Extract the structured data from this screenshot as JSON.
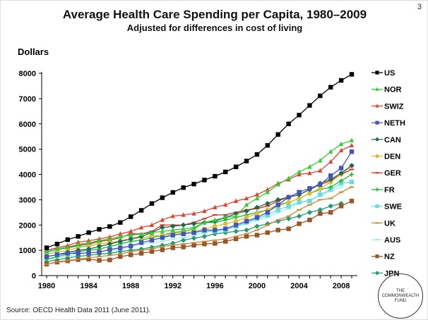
{
  "page_number": "3",
  "source": "Source: OECD Health Data 2011 (June 2011).",
  "logo_text": "THE COMMONWEALTH FUND",
  "chart_data": {
    "type": "line",
    "title": "Average Health Care Spending per Capita, 1980–2009",
    "subtitle": "Adjusted for differences in cost of living",
    "ylabel": "Dollars",
    "xlabel": "",
    "ylim": [
      0,
      8000
    ],
    "yticks": [
      0,
      1000,
      2000,
      3000,
      4000,
      5000,
      6000,
      7000,
      8000
    ],
    "xlim": [
      1980,
      2009
    ],
    "xticks": [
      1980,
      1984,
      1988,
      1992,
      1996,
      2000,
      2004,
      2008
    ],
    "grid": false,
    "legend": "right",
    "x": [
      1980,
      1981,
      1982,
      1983,
      1984,
      1985,
      1986,
      1987,
      1988,
      1989,
      1990,
      1991,
      1992,
      1993,
      1994,
      1995,
      1996,
      1997,
      1998,
      1999,
      2000,
      2001,
      2002,
      2003,
      2004,
      2005,
      2006,
      2007,
      2008,
      2009
    ],
    "series": [
      {
        "name": "US",
        "color": "#000000",
        "marker": "square",
        "values": [
          1100,
          1250,
          1420,
          1550,
          1700,
          1830,
          1940,
          2100,
          2330,
          2580,
          2850,
          3080,
          3290,
          3480,
          3620,
          3780,
          3930,
          4100,
          4300,
          4530,
          4790,
          5150,
          5580,
          6000,
          6350,
          6730,
          7110,
          7450,
          7720,
          7960
        ]
      },
      {
        "name": "NOR",
        "color": "#33cc33",
        "marker": "triangle",
        "values": [
          950,
          1050,
          1130,
          1230,
          1300,
          1380,
          1460,
          1540,
          1600,
          1640,
          1700,
          1750,
          1800,
          1850,
          1900,
          2100,
          2200,
          2300,
          2350,
          2800,
          3050,
          3300,
          3600,
          3850,
          4100,
          4300,
          4550,
          4900,
          5200,
          5350
        ]
      },
      {
        "name": "SWIZ",
        "color": "#dd4433",
        "marker": "triangle",
        "values": [
          1000,
          1100,
          1190,
          1320,
          1380,
          1450,
          1530,
          1650,
          1750,
          1900,
          2000,
          2200,
          2350,
          2400,
          2450,
          2550,
          2700,
          2800,
          2950,
          3050,
          3200,
          3400,
          3650,
          3800,
          4000,
          4050,
          4150,
          4500,
          4950,
          5150
        ]
      },
      {
        "name": "NETH",
        "color": "#4455bb",
        "marker": "square",
        "values": [
          750,
          830,
          880,
          880,
          900,
          930,
          1030,
          1100,
          1170,
          1300,
          1400,
          1500,
          1600,
          1650,
          1700,
          1800,
          1800,
          1850,
          2000,
          2150,
          2300,
          2500,
          2800,
          3100,
          3300,
          3450,
          3600,
          3950,
          4250,
          4900
        ]
      },
      {
        "name": "CAN",
        "color": "#226655",
        "marker": "diamond",
        "values": [
          750,
          830,
          920,
          1000,
          1050,
          1150,
          1250,
          1350,
          1450,
          1550,
          1700,
          1900,
          1950,
          2000,
          2050,
          2100,
          2150,
          2300,
          2450,
          2550,
          2700,
          2850,
          3000,
          3100,
          3200,
          3400,
          3650,
          3800,
          4050,
          4350
        ]
      },
      {
        "name": "DEN",
        "color": "#ddbb33",
        "marker": "circle",
        "values": [
          850,
          920,
          1000,
          1100,
          1180,
          1250,
          1300,
          1380,
          1450,
          1500,
          1550,
          1600,
          1650,
          1700,
          1750,
          1850,
          1950,
          2050,
          2150,
          2300,
          2450,
          2600,
          2750,
          2900,
          3050,
          3250,
          3450,
          3700,
          4000,
          4350
        ]
      },
      {
        "name": "GER",
        "color": "#cc3322",
        "marker": "dash",
        "values": [
          950,
          1050,
          1100,
          1200,
          1250,
          1350,
          1400,
          1500,
          1650,
          1650,
          1750,
          2000,
          2000,
          2000,
          2100,
          2250,
          2400,
          2400,
          2500,
          2600,
          2650,
          2750,
          2950,
          3100,
          3200,
          3400,
          3600,
          3750,
          4000,
          4200
        ]
      },
      {
        "name": "FR",
        "color": "#22bb33",
        "marker": "plus",
        "values": [
          650,
          750,
          850,
          950,
          1000,
          1050,
          1150,
          1250,
          1350,
          1400,
          1500,
          1600,
          1700,
          1750,
          1850,
          2100,
          2100,
          2200,
          2300,
          2400,
          2500,
          2600,
          2800,
          2900,
          3050,
          3250,
          3400,
          3500,
          3750,
          4000
        ]
      },
      {
        "name": "SWE",
        "color": "#66dddd",
        "marker": "square",
        "values": [
          900,
          1000,
          1100,
          1150,
          1200,
          1250,
          1300,
          1350,
          1450,
          1500,
          1550,
          1550,
          1600,
          1650,
          1700,
          1750,
          1750,
          1800,
          1950,
          2100,
          2250,
          2400,
          2600,
          2750,
          2900,
          2950,
          3200,
          3400,
          3650,
          3700
        ]
      },
      {
        "name": "UK",
        "color": "#cc8833",
        "marker": "dash",
        "values": [
          450,
          550,
          600,
          650,
          700,
          750,
          800,
          850,
          950,
          1000,
          1050,
          1150,
          1200,
          1250,
          1300,
          1350,
          1400,
          1450,
          1550,
          1650,
          1800,
          2000,
          2200,
          2350,
          2600,
          2800,
          3000,
          3050,
          3300,
          3500
        ]
      },
      {
        "name": "AUS",
        "color": "#99eeee",
        "marker": "dash",
        "values": [
          650,
          700,
          780,
          850,
          900,
          950,
          1000,
          1050,
          1150,
          1250,
          1300,
          1350,
          1450,
          1500,
          1600,
          1700,
          1800,
          1850,
          1950,
          2050,
          2200,
          2300,
          2500,
          2650,
          2850,
          3000,
          3150,
          3350,
          3500,
          null
        ]
      },
      {
        "name": "NZ",
        "color": "#995522",
        "marker": "square",
        "values": [
          450,
          530,
          580,
          630,
          650,
          600,
          620,
          750,
          820,
          880,
          950,
          1020,
          1100,
          1130,
          1200,
          1250,
          1270,
          1350,
          1450,
          1550,
          1600,
          1700,
          1800,
          1850,
          2050,
          2200,
          2450,
          2500,
          2750,
          2950
        ]
      },
      {
        "name": "JPN",
        "color": "#229977",
        "marker": "diamond",
        "values": [
          550,
          620,
          700,
          760,
          800,
          850,
          880,
          950,
          1000,
          1050,
          1120,
          1200,
          1280,
          1400,
          1480,
          1550,
          1650,
          1700,
          1750,
          1800,
          1950,
          2050,
          2150,
          2250,
          2350,
          2500,
          2600,
          2750,
          2850,
          null
        ]
      }
    ]
  }
}
